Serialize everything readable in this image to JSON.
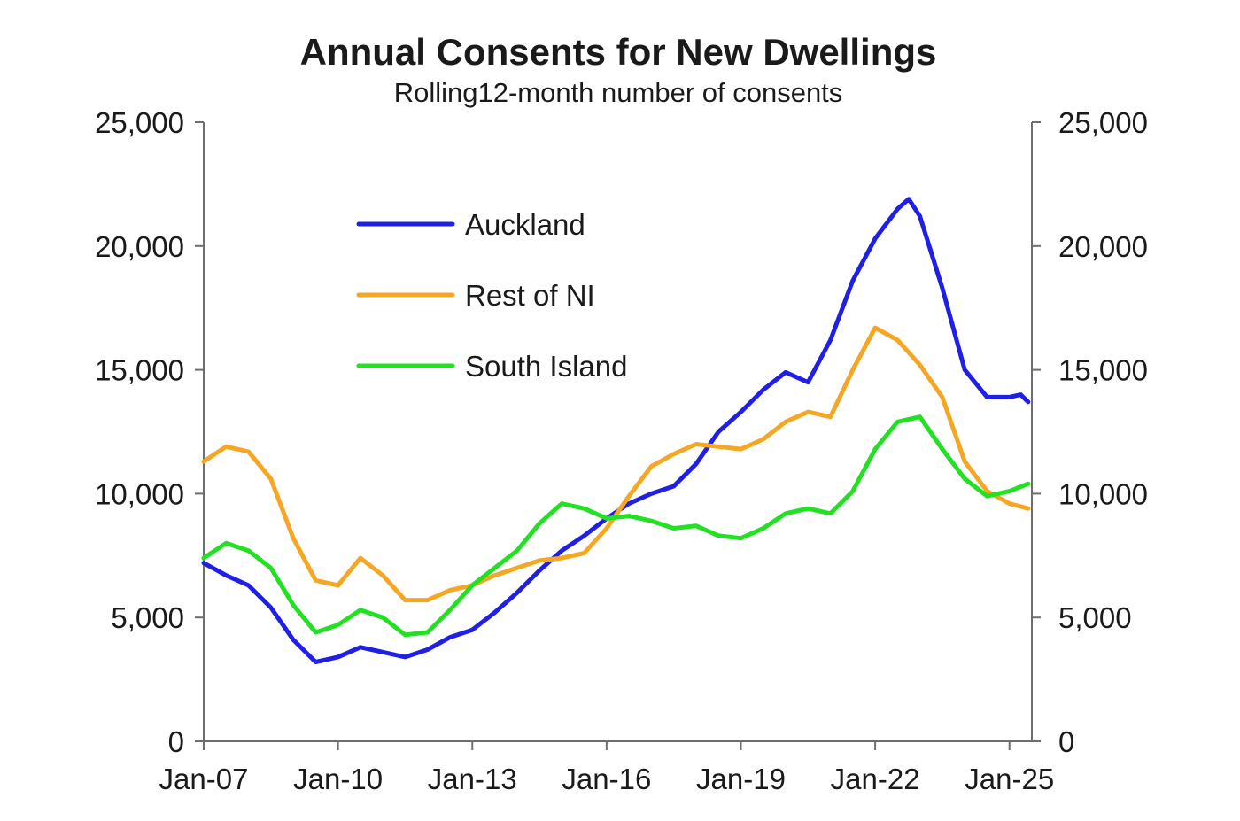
{
  "chart_data": {
    "type": "line",
    "title": "Annual Consents for New Dwellings",
    "subtitle": "Rolling12-month number of consents",
    "xlabel": "",
    "ylabel": "",
    "x_range": [
      "2007-01",
      "2025-07"
    ],
    "ylim": [
      0,
      25000
    ],
    "yticks": [
      "0",
      "5,000",
      "10,000",
      "15,000",
      "20,000",
      "25,000"
    ],
    "yticks_right": [
      "0",
      "5,000",
      "10,000",
      "15,000",
      "20,000",
      "25,000"
    ],
    "xticks": [
      {
        "x": "2007-01",
        "label": "Jan-07"
      },
      {
        "x": "2010-01",
        "label": "Jan-10"
      },
      {
        "x": "2013-01",
        "label": "Jan-13"
      },
      {
        "x": "2016-01",
        "label": "Jan-16"
      },
      {
        "x": "2019-01",
        "label": "Jan-19"
      },
      {
        "x": "2022-01",
        "label": "Jan-22"
      },
      {
        "x": "2025-01",
        "label": "Jan-25"
      }
    ],
    "grid": false,
    "legend_position": "top-left",
    "series": [
      {
        "name": "Auckland",
        "color": "#1f1fe6",
        "points": [
          [
            "2007-01",
            7200
          ],
          [
            "2007-07",
            6700
          ],
          [
            "2008-01",
            6300
          ],
          [
            "2008-07",
            5400
          ],
          [
            "2009-01",
            4100
          ],
          [
            "2009-07",
            3200
          ],
          [
            "2010-01",
            3400
          ],
          [
            "2010-07",
            3800
          ],
          [
            "2011-01",
            3600
          ],
          [
            "2011-07",
            3400
          ],
          [
            "2012-01",
            3700
          ],
          [
            "2012-07",
            4200
          ],
          [
            "2013-01",
            4500
          ],
          [
            "2013-07",
            5200
          ],
          [
            "2014-01",
            6000
          ],
          [
            "2014-07",
            6900
          ],
          [
            "2015-01",
            7700
          ],
          [
            "2015-07",
            8300
          ],
          [
            "2016-01",
            9000
          ],
          [
            "2016-07",
            9600
          ],
          [
            "2017-01",
            10000
          ],
          [
            "2017-07",
            10300
          ],
          [
            "2018-01",
            11200
          ],
          [
            "2018-07",
            12500
          ],
          [
            "2019-01",
            13300
          ],
          [
            "2019-07",
            14200
          ],
          [
            "2020-01",
            14900
          ],
          [
            "2020-07",
            14500
          ],
          [
            "2021-01",
            16200
          ],
          [
            "2021-07",
            18600
          ],
          [
            "2022-01",
            20300
          ],
          [
            "2022-07",
            21500
          ],
          [
            "2022-10",
            21900
          ],
          [
            "2023-01",
            21200
          ],
          [
            "2023-07",
            18300
          ],
          [
            "2024-01",
            15000
          ],
          [
            "2024-07",
            13900
          ],
          [
            "2025-01",
            13900
          ],
          [
            "2025-04",
            14000
          ],
          [
            "2025-06",
            13700
          ]
        ]
      },
      {
        "name": "Rest of NI",
        "color": "#f5a623",
        "points": [
          [
            "2007-01",
            11300
          ],
          [
            "2007-07",
            11900
          ],
          [
            "2008-01",
            11700
          ],
          [
            "2008-07",
            10600
          ],
          [
            "2009-01",
            8200
          ],
          [
            "2009-07",
            6500
          ],
          [
            "2010-01",
            6300
          ],
          [
            "2010-07",
            7400
          ],
          [
            "2011-01",
            6700
          ],
          [
            "2011-07",
            5700
          ],
          [
            "2012-01",
            5700
          ],
          [
            "2012-07",
            6100
          ],
          [
            "2013-01",
            6300
          ],
          [
            "2013-07",
            6700
          ],
          [
            "2014-01",
            7000
          ],
          [
            "2014-07",
            7300
          ],
          [
            "2015-01",
            7400
          ],
          [
            "2015-07",
            7600
          ],
          [
            "2016-01",
            8600
          ],
          [
            "2016-07",
            9900
          ],
          [
            "2017-01",
            11100
          ],
          [
            "2017-07",
            11600
          ],
          [
            "2018-01",
            12000
          ],
          [
            "2018-07",
            11900
          ],
          [
            "2019-01",
            11800
          ],
          [
            "2019-07",
            12200
          ],
          [
            "2020-01",
            12900
          ],
          [
            "2020-07",
            13300
          ],
          [
            "2021-01",
            13100
          ],
          [
            "2021-07",
            15000
          ],
          [
            "2022-01",
            16700
          ],
          [
            "2022-07",
            16200
          ],
          [
            "2023-01",
            15200
          ],
          [
            "2023-07",
            13900
          ],
          [
            "2024-01",
            11300
          ],
          [
            "2024-07",
            10100
          ],
          [
            "2025-01",
            9600
          ],
          [
            "2025-06",
            9400
          ]
        ]
      },
      {
        "name": "South Island",
        "color": "#22e022",
        "points": [
          [
            "2007-01",
            7400
          ],
          [
            "2007-07",
            8000
          ],
          [
            "2008-01",
            7700
          ],
          [
            "2008-07",
            7000
          ],
          [
            "2009-01",
            5500
          ],
          [
            "2009-07",
            4400
          ],
          [
            "2010-01",
            4700
          ],
          [
            "2010-07",
            5300
          ],
          [
            "2011-01",
            5000
          ],
          [
            "2011-07",
            4300
          ],
          [
            "2012-01",
            4400
          ],
          [
            "2012-07",
            5300
          ],
          [
            "2013-01",
            6300
          ],
          [
            "2013-07",
            7000
          ],
          [
            "2014-01",
            7700
          ],
          [
            "2014-07",
            8800
          ],
          [
            "2015-01",
            9600
          ],
          [
            "2015-07",
            9400
          ],
          [
            "2016-01",
            9000
          ],
          [
            "2016-07",
            9100
          ],
          [
            "2017-01",
            8900
          ],
          [
            "2017-07",
            8600
          ],
          [
            "2018-01",
            8700
          ],
          [
            "2018-07",
            8300
          ],
          [
            "2019-01",
            8200
          ],
          [
            "2019-07",
            8600
          ],
          [
            "2020-01",
            9200
          ],
          [
            "2020-07",
            9400
          ],
          [
            "2021-01",
            9200
          ],
          [
            "2021-07",
            10100
          ],
          [
            "2022-01",
            11800
          ],
          [
            "2022-07",
            12900
          ],
          [
            "2023-01",
            13100
          ],
          [
            "2023-07",
            11800
          ],
          [
            "2024-01",
            10600
          ],
          [
            "2024-07",
            9900
          ],
          [
            "2025-01",
            10100
          ],
          [
            "2025-06",
            10400
          ]
        ]
      }
    ]
  }
}
